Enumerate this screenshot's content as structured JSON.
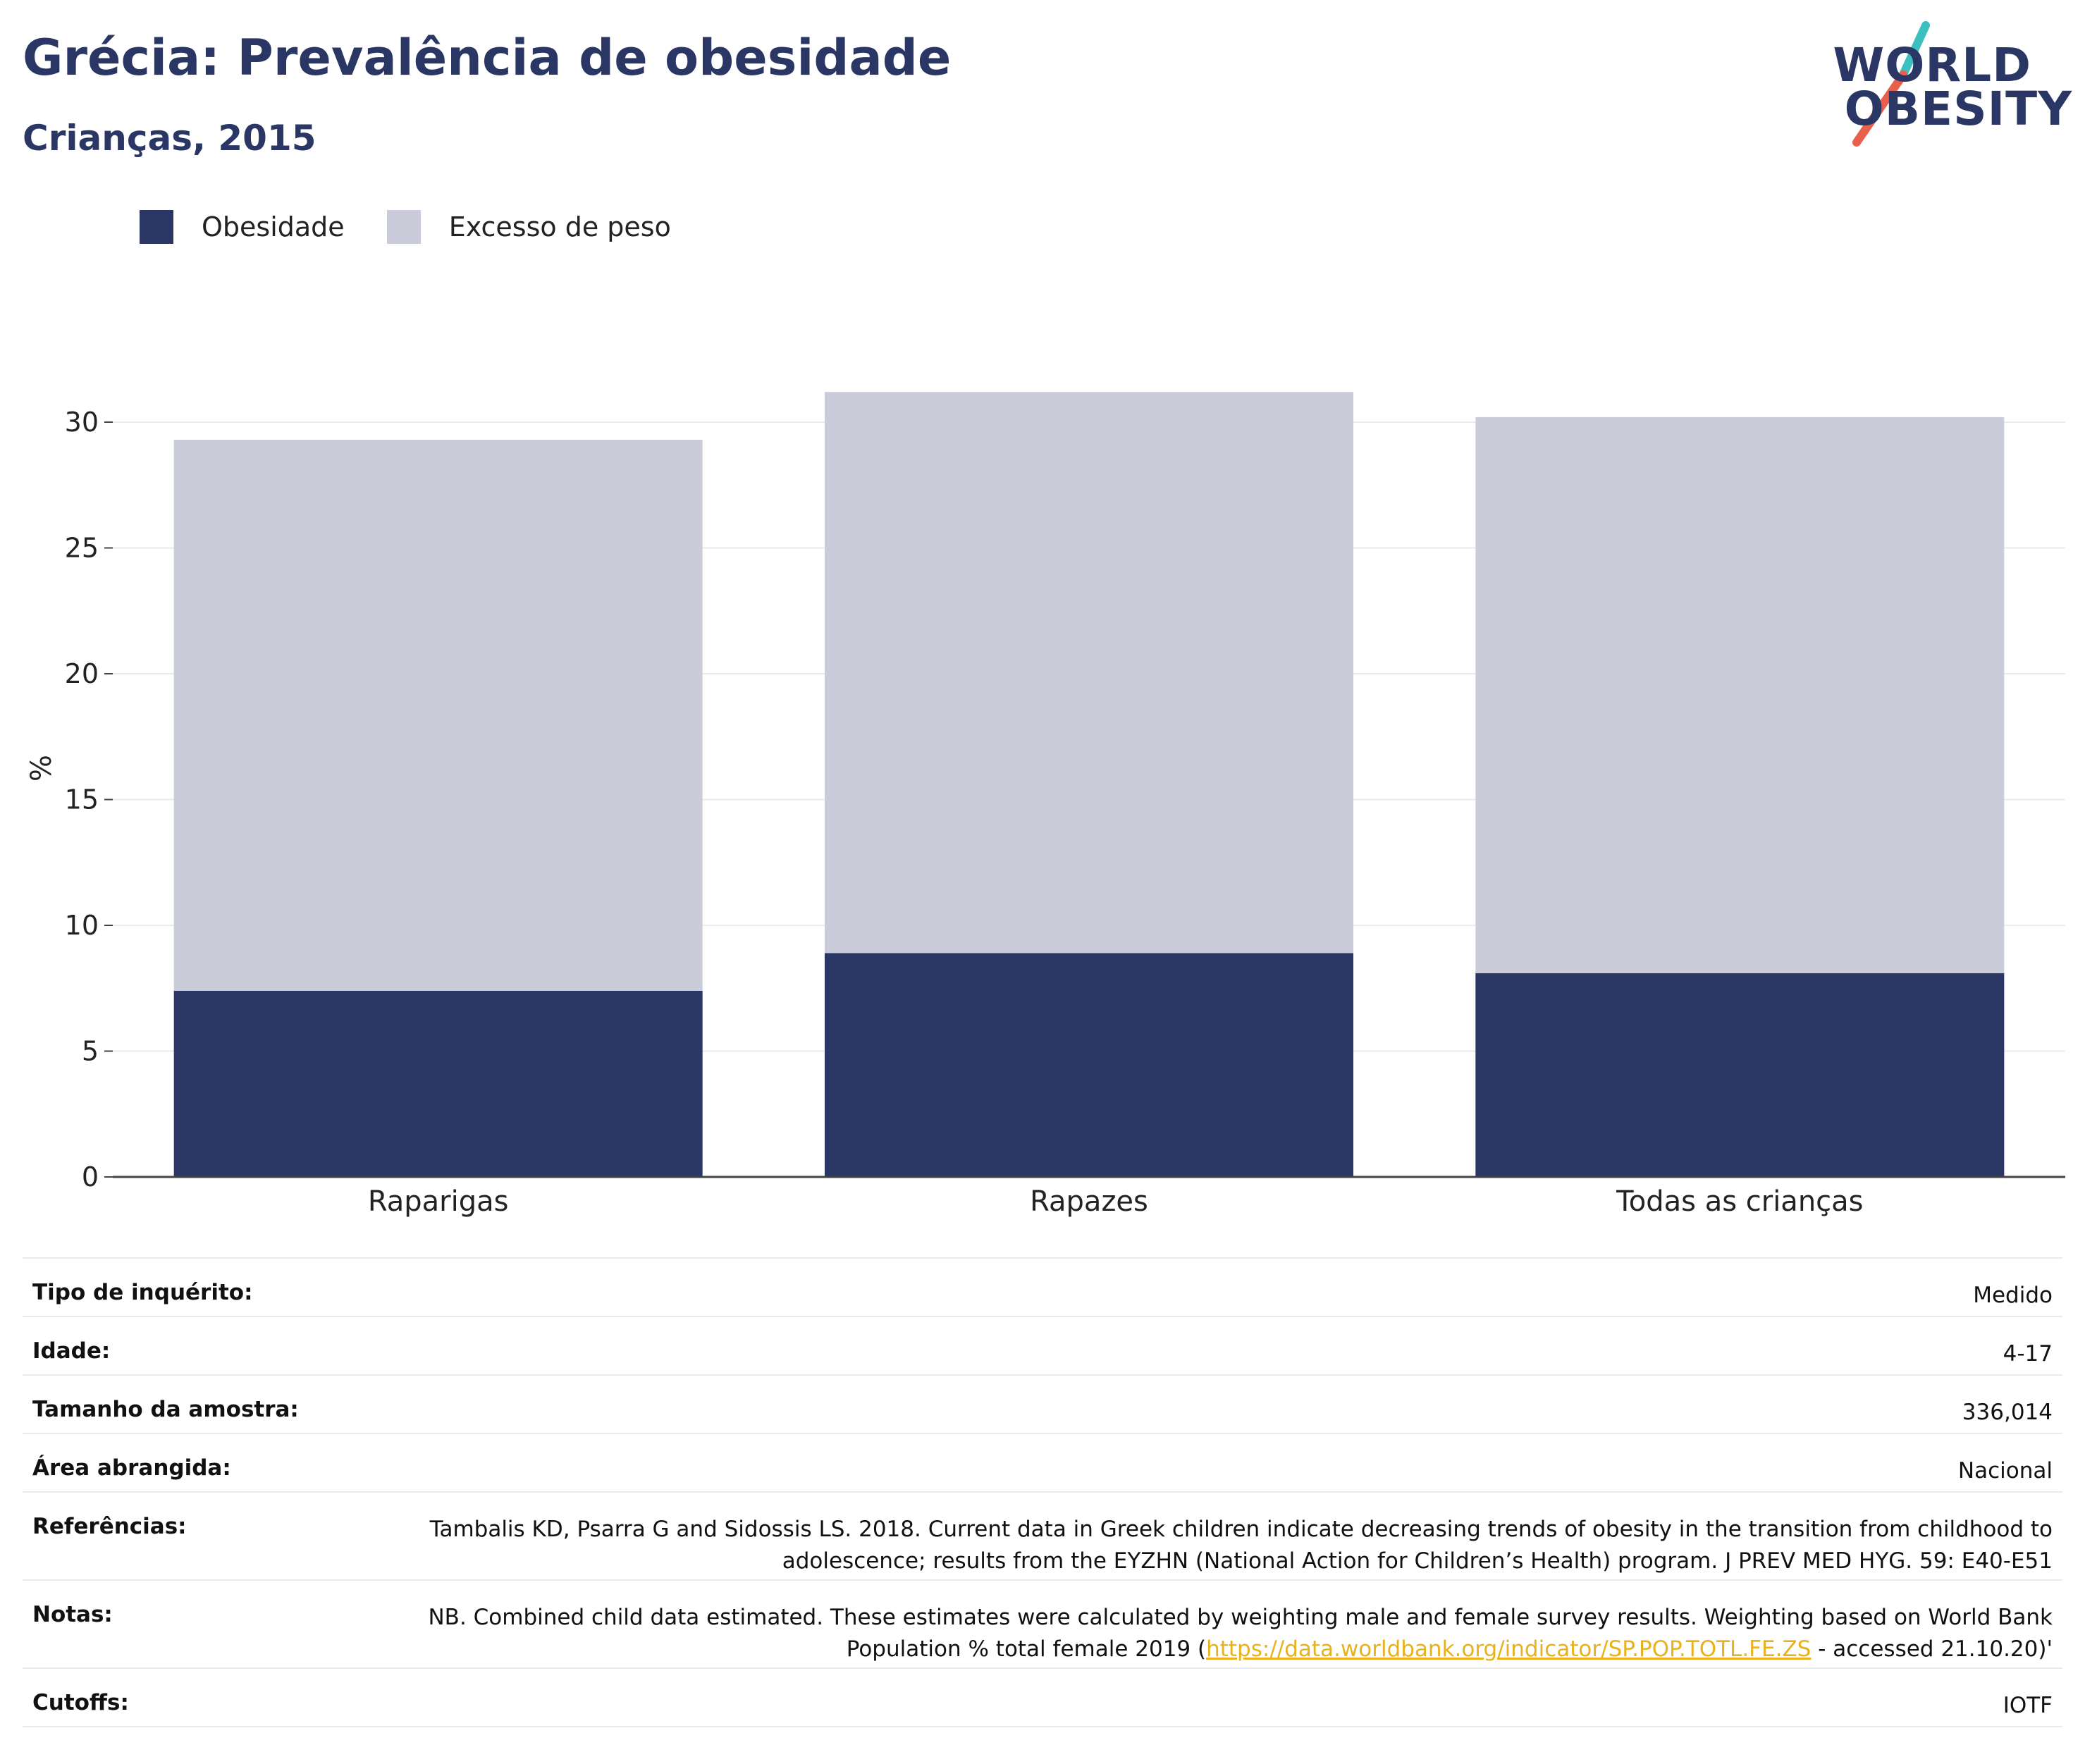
{
  "title": "Grécia: Prevalência de obesidade",
  "subtitle": "Crianças, 2015",
  "logo": {
    "line1": "WORLD",
    "line2": "OBESITY"
  },
  "colors": {
    "obesity": "#2a3664",
    "overweight": "#cacdd9",
    "title": "#2a3664",
    "link": "#e8b21e",
    "accent_teal": "#3bbfbf",
    "accent_coral": "#e8604c"
  },
  "chart_data": {
    "type": "bar",
    "stacked": true,
    "categories": [
      "Raparigas",
      "Rapazes",
      "Todas as crianças"
    ],
    "series": [
      {
        "name": "Obesidade",
        "values": [
          7.4,
          8.9,
          8.1
        ]
      },
      {
        "name": "Excesso de peso",
        "values": [
          21.9,
          22.3,
          22.1
        ]
      }
    ],
    "ylabel": "%",
    "ylim": [
      0,
      31.5
    ],
    "yticks": [
      0,
      5,
      10,
      15,
      20,
      25,
      30
    ],
    "grid": true,
    "legend": "top-left"
  },
  "info": {
    "rows": [
      {
        "key": "Tipo de inquérito:",
        "value": "Medido"
      },
      {
        "key": "Idade:",
        "value": "4-17"
      },
      {
        "key": "Tamanho da amostra:",
        "value": "336,014"
      },
      {
        "key": "Área abrangida:",
        "value": "Nacional"
      },
      {
        "key": "Referências:",
        "value": "Tambalis KD, Psarra G and Sidossis LS. 2018. Current data in Greek children indicate decreasing trends of obesity in the transition from childhood to adolescence; results from the EYZHN (National Action for Children’s Health) program. J PREV MED HYG. 59: E40-E51"
      }
    ],
    "notes": {
      "key": "Notas:",
      "before": "NB. Combined child data estimated. These estimates were calculated by weighting male and female survey results. Weighting based on World Bank Population % total female 2019 (",
      "link": "https://data.worldbank.org/indicator/SP.POP.TOTL.FE.ZS",
      "after": " - accessed 21.10.20)'"
    },
    "cutoffs": {
      "key": "Cutoffs:",
      "value": "IOTF"
    }
  }
}
